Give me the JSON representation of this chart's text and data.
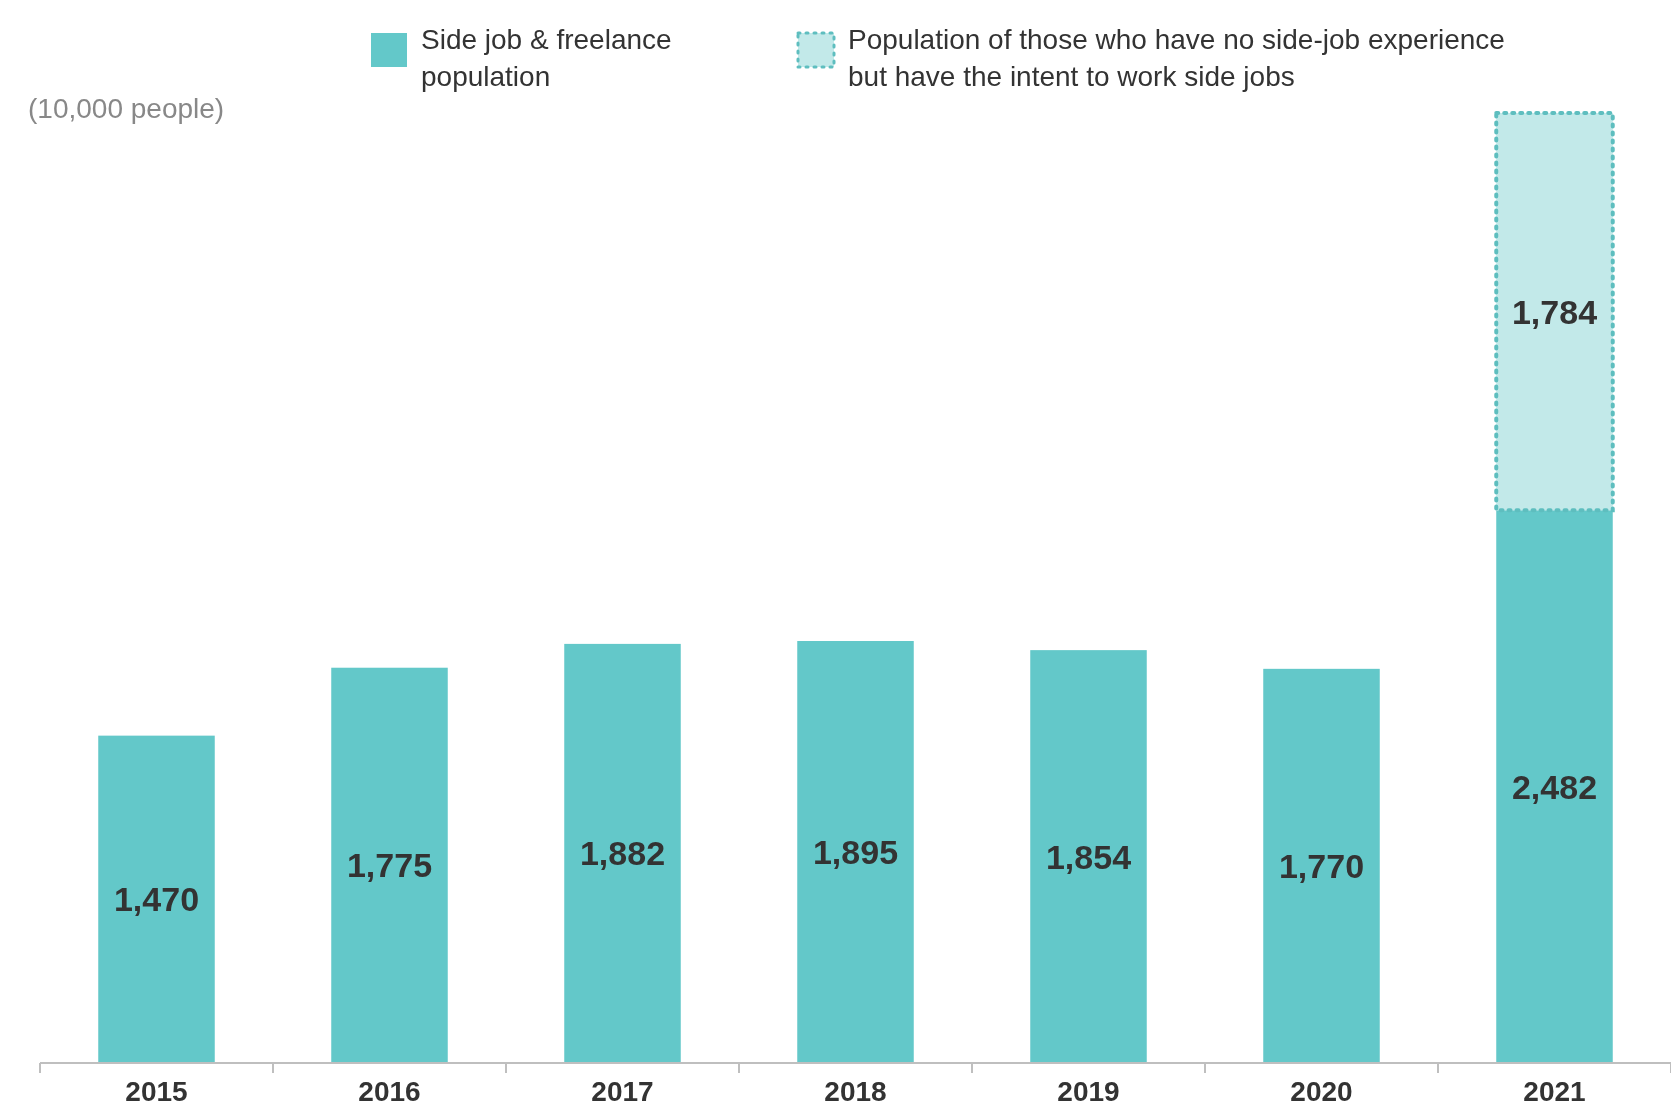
{
  "chart_data": {
    "type": "bar",
    "stacked": true,
    "ylabel": "(10,000 people)",
    "categories": [
      "2015",
      "2016",
      "2017",
      "2018",
      "2019",
      "2020",
      "2021"
    ],
    "series": [
      {
        "name": "Side job & freelance population",
        "color": "#63c8c9",
        "values": [
          1470,
          1775,
          1882,
          1895,
          1854,
          1770,
          2482
        ],
        "value_labels": [
          "1,470",
          "1,775",
          "1,882",
          "1,895",
          "1,854",
          "1,770",
          "2,482"
        ]
      },
      {
        "name": "Population of those who have no side-job experience but have the intent to work side jobs",
        "color": "#c2e9e9",
        "line_style": "dotted",
        "values": [
          null,
          null,
          null,
          null,
          null,
          null,
          1784
        ],
        "value_labels": [
          null,
          null,
          null,
          null,
          null,
          null,
          "1,784"
        ]
      }
    ],
    "legend": "top"
  }
}
